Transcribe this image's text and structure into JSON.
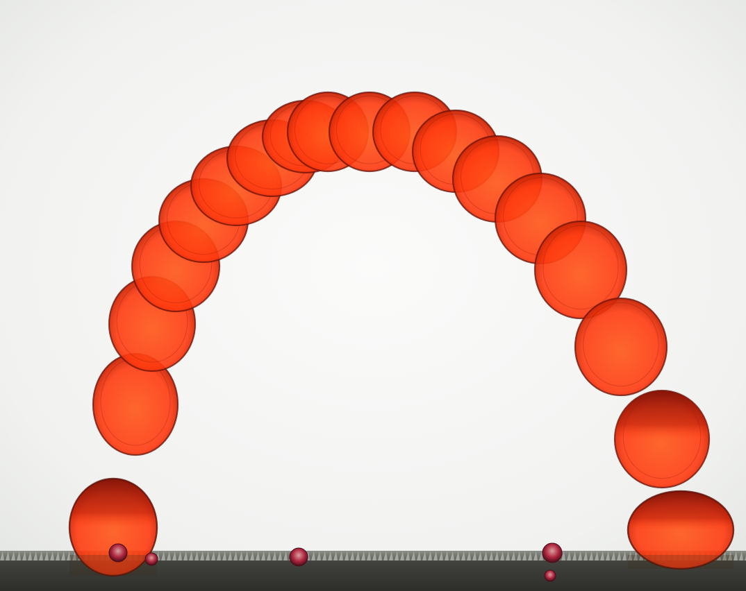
{
  "image": {
    "subject": "red-droplet-bouncing-arc",
    "colors": {
      "background_center": "#fbfbfa",
      "background_edge": "#e6e8e5",
      "droplet_fill": "#ff3a10",
      "droplet_core": "#ff5a1c",
      "droplet_rim": "#6a1208",
      "surface_dark": "#3e4038",
      "surface_light": "#8c8f88"
    }
  }
}
